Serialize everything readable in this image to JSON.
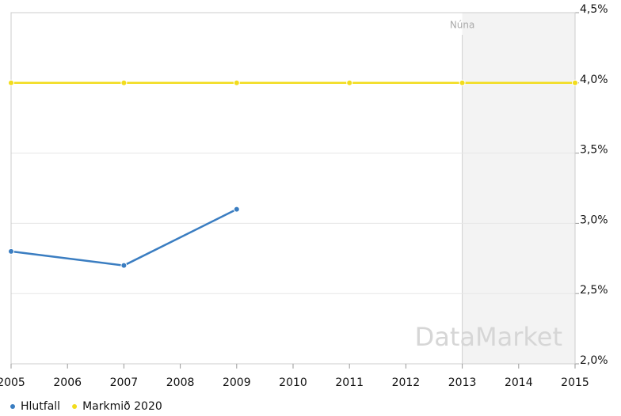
{
  "chart_data": {
    "type": "line",
    "xlim": [
      2005,
      2015
    ],
    "xticks": [
      2005,
      2006,
      2007,
      2008,
      2009,
      2010,
      2011,
      2012,
      2013,
      2014,
      2015
    ],
    "ylim": [
      2.0,
      4.5
    ],
    "yticks": [
      {
        "value": 2.0,
        "label": "2,0%"
      },
      {
        "value": 2.5,
        "label": "2,5%"
      },
      {
        "value": 3.0,
        "label": "3,0%"
      },
      {
        "value": 3.5,
        "label": "3,5%"
      },
      {
        "value": 4.0,
        "label": "4,0%"
      },
      {
        "value": 4.5,
        "label": "4,5%"
      }
    ],
    "grid": true,
    "series": [
      {
        "name": "Hlutfall",
        "color": "#3a7dc1",
        "x": [
          2005,
          2007,
          2009
        ],
        "values": [
          2.8,
          2.7,
          3.1
        ]
      },
      {
        "name": "Markmið 2020",
        "color": "#f2dc1c",
        "x": [
          2005,
          2007,
          2009,
          2011,
          2013,
          2015
        ],
        "values": [
          4.0,
          4.0,
          4.0,
          4.0,
          4.0,
          4.0
        ]
      }
    ],
    "annotation": {
      "text": "Núna",
      "x": 2013
    },
    "watermark": "DataMarket"
  }
}
